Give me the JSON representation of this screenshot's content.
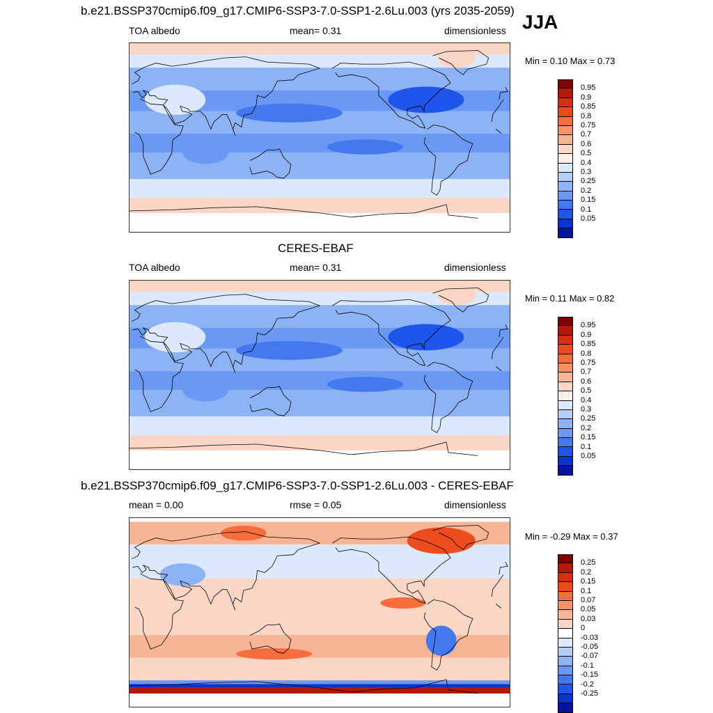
{
  "season": "JJA",
  "panels": [
    {
      "title": "b.e21.BSSP370cmip6.f09_g17.CMIP6-SSP3-7.0-SSP1-2.6Lu.003 (yrs 2035-2059)",
      "left_label": "TOA albedo",
      "center_label": "mean=   0.31",
      "right_label": "dimensionless",
      "stats": "Min =   0.10 Max =   0.73",
      "kind": "albedo"
    },
    {
      "title": "CERES-EBAF",
      "left_label": "TOA albedo",
      "center_label": "mean=   0.31",
      "right_label": "dimensionless",
      "stats": "Min =   0.11 Max =   0.82",
      "kind": "albedo"
    },
    {
      "title": "b.e21.BSSP370cmip6.f09_g17.CMIP6-SSP3-7.0-SSP1-2.6Lu.003 - CERES-EBAF",
      "left_label": "mean =   0.00",
      "center_label": "rmse =   0.05",
      "right_label": "dimensionless",
      "stats": "Min =  -0.29 Max =   0.37",
      "kind": "diff"
    }
  ],
  "colorbars": {
    "albedo": {
      "labels": [
        "0.95",
        "0.9",
        "0.85",
        "0.8",
        "0.75",
        "0.7",
        "0.6",
        "0.5",
        "0.4",
        "0.3",
        "0.25",
        "0.2",
        "0.15",
        "0.1",
        "0.05"
      ],
      "colors": [
        "#800000",
        "#b01a06",
        "#d8300f",
        "#ee4c1c",
        "#f66e3c",
        "#f79469",
        "#f8b595",
        "#fcd6c4",
        "#fcf0e8",
        "#dce9fc",
        "#b2cff9",
        "#8db3f4",
        "#6a98f2",
        "#4478ef",
        "#1f55ea",
        "#0636c9",
        "#01159c"
      ]
    },
    "diff": {
      "labels": [
        "0.25",
        "0.2",
        "0.15",
        "0.1",
        "0.07",
        "0.05",
        "0.03",
        "0",
        "-0.03",
        "-0.05",
        "-0.07",
        "-0.1",
        "-0.15",
        "-0.2",
        "-0.25"
      ],
      "colors": [
        "#800000",
        "#b01a06",
        "#d8300f",
        "#ee4c1c",
        "#f66e3c",
        "#f79469",
        "#f8b595",
        "#fcd6c4",
        "#ffffff",
        "#dce9fc",
        "#b2cff9",
        "#8db3f4",
        "#6a98f2",
        "#4478ef",
        "#1f55ea",
        "#0636c9",
        "#01159c"
      ]
    }
  }
}
